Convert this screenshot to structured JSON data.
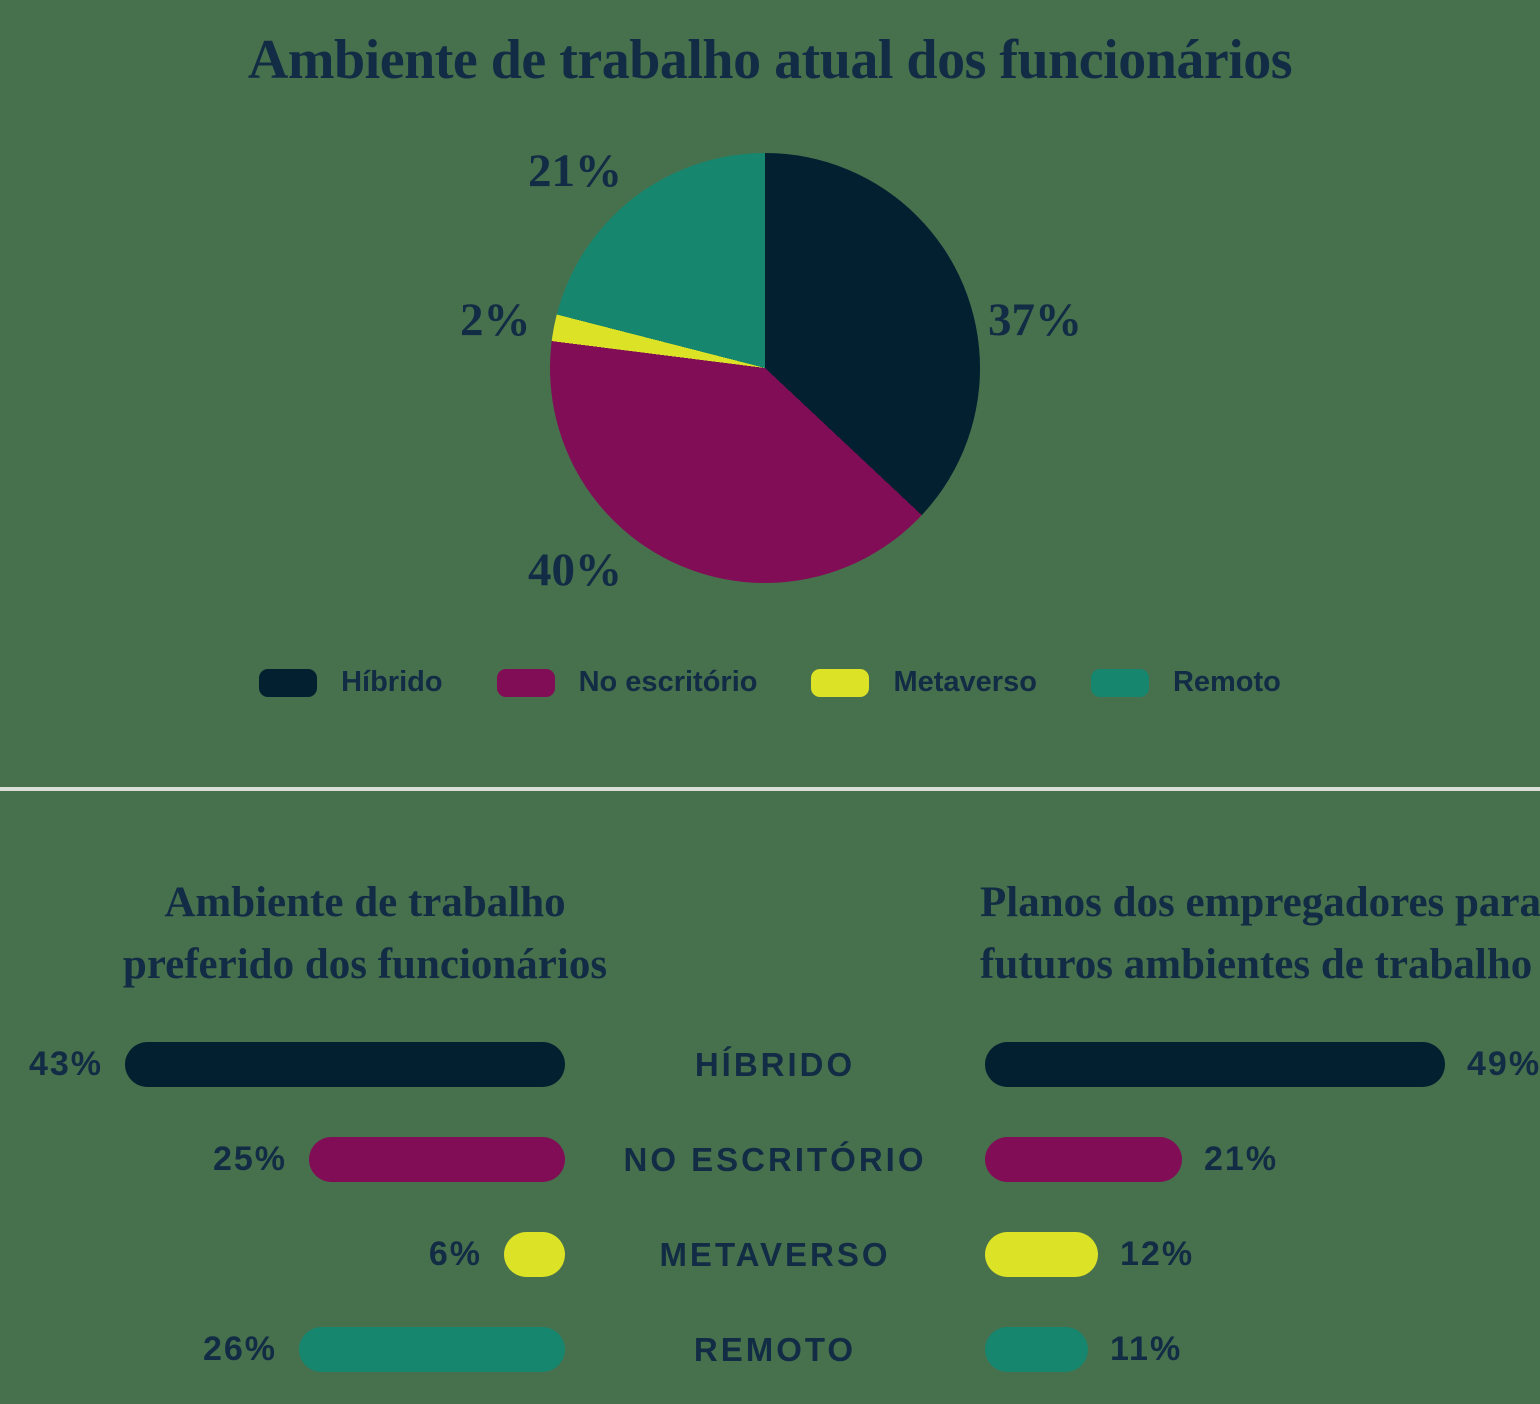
{
  "background_color": "#47704d",
  "text_color": "#112c44",
  "divider_color": "#d9ded9",
  "pie_section": {
    "title": "Ambiente de trabalho atual dos funcionários",
    "slice_labels": {
      "hibrido": "37%",
      "no_escritorio": "40%",
      "metaverso": "2%",
      "remoto": "21%"
    }
  },
  "legend": {
    "items": [
      {
        "label": "Híbrido",
        "color": "#02202f"
      },
      {
        "label": "No escritório",
        "color": "#810d56"
      },
      {
        "label": "Metaverso",
        "color": "#dce226"
      },
      {
        "label": "Remoto",
        "color": "#17866e"
      }
    ]
  },
  "bottom": {
    "left_title_line1": "Ambiente de trabalho",
    "left_title_line2": "preferido dos funcionários",
    "right_title_line1": "Planos dos empregadores para",
    "right_title_line2": "futuros ambientes de trabalho",
    "rows": [
      {
        "category": "HÍBRIDO",
        "left_label": "43%",
        "right_label": "49%"
      },
      {
        "category": "NO ESCRITÓRIO",
        "left_label": "25%",
        "right_label": "21%"
      },
      {
        "category": "METAVERSO",
        "left_label": "6%",
        "right_label": "12%"
      },
      {
        "category": "REMOTO",
        "left_label": "26%",
        "right_label": "11%"
      }
    ]
  },
  "chart_data": [
    {
      "type": "pie",
      "title": "Ambiente de trabalho atual dos funcionários",
      "labels": [
        "Híbrido",
        "No escritório",
        "Metaverso",
        "Remoto"
      ],
      "values": [
        37,
        40,
        2,
        21
      ],
      "unit": "%",
      "colors": [
        "#02202f",
        "#810d56",
        "#dce226",
        "#17866e"
      ],
      "start_angle": "12-oclock",
      "direction": "clockwise",
      "legend_position": "bottom",
      "slice_labels": [
        "37%",
        "40%",
        "2%",
        "21%"
      ]
    },
    {
      "type": "bar",
      "orientation": "horizontal",
      "bar_direction": "right-to-left",
      "title": "Ambiente de trabalho preferido dos funcionários",
      "categories": [
        "HÍBRIDO",
        "NO ESCRITÓRIO",
        "METAVERSO",
        "REMOTO"
      ],
      "values": [
        43,
        25,
        6,
        26
      ],
      "unit": "%",
      "colors": [
        "#02202f",
        "#810d56",
        "#dce226",
        "#17866e"
      ],
      "xlim": [
        0,
        43
      ]
    },
    {
      "type": "bar",
      "orientation": "horizontal",
      "bar_direction": "left-to-right",
      "title": "Planos dos empregadores para futuros ambientes de trabalho",
      "categories": [
        "HÍBRIDO",
        "NO ESCRITÓRIO",
        "METAVERSO",
        "REMOTO"
      ],
      "values": [
        49,
        21,
        12,
        11
      ],
      "unit": "%",
      "colors": [
        "#02202f",
        "#810d56",
        "#dce226",
        "#17866e"
      ],
      "xlim": [
        0,
        49
      ]
    }
  ]
}
